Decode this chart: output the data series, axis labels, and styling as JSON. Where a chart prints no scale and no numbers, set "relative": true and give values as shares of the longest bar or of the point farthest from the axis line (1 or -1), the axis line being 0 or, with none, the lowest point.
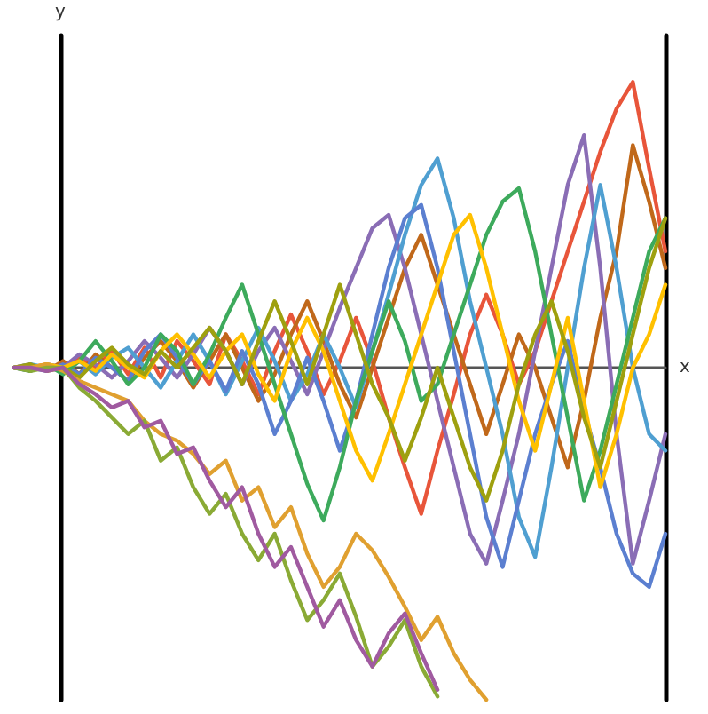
{
  "chart_data": {
    "type": "line",
    "relative": true,
    "xlabel": "x",
    "ylabel": "y",
    "categories": [
      null,
      null,
      null,
      null,
      null,
      null,
      null,
      null,
      null,
      null,
      null,
      null,
      null,
      null,
      null,
      null,
      null,
      null,
      null,
      null,
      null,
      null,
      null,
      null,
      null,
      null,
      null,
      null,
      null,
      null,
      null,
      null,
      null,
      null,
      null,
      null,
      null,
      null,
      null,
      null,
      null
    ],
    "series": [
      {
        "color": "#e8553a",
        "values": [
          0,
          0,
          0.01,
          0,
          0.03,
          0,
          0.05,
          -0.02,
          0.06,
          -0.03,
          0.08,
          0.02,
          -0.05,
          0.1,
          0.02,
          -0.08,
          0.05,
          0.16,
          0.05,
          -0.08,
          0.02,
          0.15,
          0.02,
          -0.15,
          -0.3,
          -0.44,
          -0.25,
          -0.08,
          0.1,
          0.22,
          0.1,
          -0.05,
          0.05,
          0.2,
          0.35,
          0.5,
          0.65,
          0.78,
          0.86,
          0.6,
          0.35
        ]
      },
      {
        "color": "#c0681a",
        "values": [
          0,
          0.01,
          -0.01,
          0.02,
          -0.02,
          0.04,
          0,
          -0.04,
          0.03,
          0.08,
          0.02,
          -0.06,
          0.02,
          0.1,
          0,
          -0.1,
          -0.02,
          0.1,
          0.2,
          0.08,
          -0.05,
          -0.15,
          0,
          0.15,
          0.3,
          0.4,
          0.25,
          0.1,
          -0.05,
          -0.2,
          -0.05,
          0.1,
          0,
          -0.15,
          -0.3,
          -0.1,
          0.15,
          0.35,
          0.67,
          0.5,
          0.3
        ]
      },
      {
        "color": "#8a6db5",
        "values": [
          0,
          -0.01,
          0.01,
          0,
          0.04,
          0.01,
          -0.03,
          0.02,
          0.08,
          0.03,
          -0.03,
          0.04,
          0.12,
          0.05,
          -0.05,
          0.05,
          0.12,
          0.02,
          -0.08,
          0.05,
          0.18,
          0.3,
          0.42,
          0.46,
          0.3,
          0.1,
          -0.1,
          -0.3,
          -0.5,
          -0.59,
          -0.4,
          -0.2,
          0.05,
          0.3,
          0.55,
          0.7,
          0.3,
          -0.2,
          -0.59,
          -0.4,
          -0.2
        ]
      },
      {
        "color": "#4f9fd1",
        "values": [
          0,
          0.01,
          0,
          -0.01,
          0.02,
          -0.02,
          0.03,
          0.06,
          0,
          -0.06,
          0.02,
          0.1,
          0.02,
          -0.08,
          0.02,
          0.12,
          0.02,
          -0.1,
          -0.02,
          0.1,
          0,
          -0.12,
          0.05,
          0.22,
          0.4,
          0.55,
          0.63,
          0.45,
          0.2,
          0,
          -0.2,
          -0.45,
          -0.57,
          -0.3,
          0,
          0.3,
          0.55,
          0.3,
          0,
          -0.2,
          -0.25
        ]
      },
      {
        "color": "#5b7fd0",
        "values": [
          0,
          0,
          -0.01,
          0.01,
          -0.02,
          0.03,
          0,
          -0.04,
          0.05,
          0.1,
          0.03,
          -0.05,
          0.02,
          -0.07,
          0.05,
          -0.05,
          -0.2,
          -0.1,
          0.03,
          -0.1,
          -0.25,
          -0.1,
          0.1,
          0.3,
          0.45,
          0.49,
          0.3,
          0.05,
          -0.2,
          -0.45,
          -0.6,
          -0.4,
          -0.2,
          -0.05,
          0.08,
          -0.13,
          -0.3,
          -0.5,
          -0.62,
          -0.66,
          -0.5
        ]
      },
      {
        "color": "#3daa5c",
        "values": [
          0,
          -0.01,
          0.01,
          -0.02,
          0.02,
          0.08,
          0.02,
          -0.05,
          0,
          0.1,
          0.05,
          -0.05,
          0.04,
          0.15,
          0.25,
          0.1,
          -0.05,
          -0.2,
          -0.35,
          -0.46,
          -0.3,
          -0.1,
          0.05,
          0.2,
          0.08,
          -0.1,
          -0.05,
          0.1,
          0.25,
          0.4,
          0.5,
          0.54,
          0.35,
          0.1,
          -0.15,
          -0.4,
          -0.25,
          -0.05,
          0.15,
          0.35,
          0.45
        ]
      },
      {
        "color": "#ffc000",
        "values": [
          0,
          0,
          0.01,
          0,
          0.02,
          -0.01,
          0.04,
          0,
          -0.03,
          0.05,
          0.1,
          0.04,
          -0.03,
          0.05,
          0.1,
          -0.02,
          -0.1,
          0.05,
          0.15,
          0.05,
          -0.1,
          -0.25,
          -0.34,
          -0.2,
          -0.05,
          0.1,
          0.25,
          0.4,
          0.46,
          0.3,
          0.1,
          -0.1,
          -0.25,
          -0.05,
          0.15,
          -0.1,
          -0.36,
          -0.2,
          0,
          0.1,
          0.25
        ]
      },
      {
        "color": "#9ea00f",
        "values": [
          0,
          0.01,
          -0.01,
          0,
          -0.03,
          0.02,
          0.06,
          0.01,
          -0.02,
          0.05,
          0,
          0.06,
          0.12,
          0.05,
          -0.05,
          0.08,
          0.2,
          0.08,
          -0.05,
          0.1,
          0.25,
          0.1,
          -0.05,
          -0.15,
          -0.28,
          -0.15,
          0,
          -0.15,
          -0.3,
          -0.4,
          -0.25,
          -0.05,
          0.1,
          0.2,
          0.05,
          -0.15,
          -0.3,
          -0.1,
          0.1,
          0.3,
          0.45
        ]
      },
      {
        "color": "#e0a030",
        "values": [
          0,
          0,
          0.01,
          -0.01,
          -0.04,
          -0.06,
          -0.08,
          -0.1,
          -0.16,
          -0.2,
          -0.22,
          -0.26,
          -0.32,
          -0.28,
          -0.4,
          -0.36,
          -0.48,
          -0.42,
          -0.56,
          -0.66,
          -0.6,
          -0.5,
          -0.55,
          -0.63,
          -0.72,
          -0.82,
          -0.75,
          -0.86,
          -0.94,
          -1,
          null,
          null,
          null,
          null,
          null,
          null,
          null,
          null,
          null,
          null,
          null
        ]
      },
      {
        "color": "#8aaa35",
        "values": [
          0,
          -0.01,
          0,
          0,
          -0.06,
          -0.1,
          -0.15,
          -0.2,
          -0.16,
          -0.28,
          -0.24,
          -0.36,
          -0.44,
          -0.38,
          -0.5,
          -0.58,
          -0.5,
          -0.64,
          -0.76,
          -0.7,
          -0.62,
          -0.75,
          -0.9,
          -0.84,
          -0.76,
          -0.9,
          -0.99,
          null,
          null,
          null,
          null,
          null,
          null,
          null,
          null,
          null,
          null,
          null,
          null,
          null,
          null
        ]
      },
      {
        "color": "#a05aa0",
        "values": [
          0,
          0,
          -0.01,
          0,
          -0.05,
          -0.08,
          -0.12,
          -0.1,
          -0.18,
          -0.16,
          -0.26,
          -0.24,
          -0.34,
          -0.42,
          -0.36,
          -0.5,
          -0.6,
          -0.54,
          -0.66,
          -0.78,
          -0.7,
          -0.82,
          -0.9,
          -0.8,
          -0.74,
          -0.86,
          -0.97,
          null,
          null,
          null,
          null,
          null,
          null,
          null,
          null,
          null,
          null,
          null,
          null,
          null,
          null
        ]
      }
    ]
  }
}
